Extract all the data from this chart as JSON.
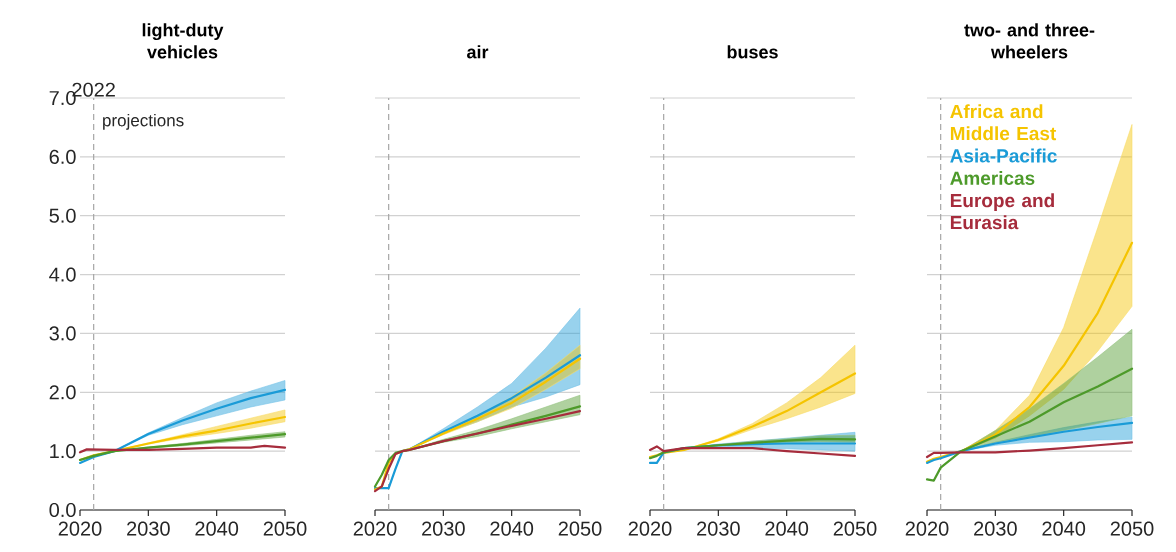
{
  "chart_data": [
    {
      "type": "line",
      "title": "light-duty vehicles",
      "xlim": [
        2020,
        2050
      ],
      "ylim": [
        0,
        7
      ],
      "xticks": [
        2020,
        2030,
        2040,
        2050
      ],
      "yticks": [
        {
          "value": 0,
          "label": "0.0"
        },
        {
          "value": 1,
          "label": "1.0"
        },
        {
          "value": 2,
          "label": "2.0"
        },
        {
          "value": 3,
          "label": "3.0"
        },
        {
          "value": 4,
          "label": "4.0"
        },
        {
          "value": 5,
          "label": "5.0"
        },
        {
          "value": 6,
          "label": "6.0"
        },
        {
          "value": 7,
          "label": "7.0"
        }
      ],
      "grid": "y",
      "ref_lines": [
        {
          "axis": "x",
          "value": 2022,
          "label": "2022",
          "color": "#a6a6a6",
          "line_style": "dashed"
        }
      ],
      "annotations": [
        "projections"
      ],
      "series": [
        {
          "color": "#f5c400",
          "x": [
            2020,
            2022,
            2025,
            2030,
            2035,
            2040,
            2045,
            2050
          ],
          "values": [
            0.85,
            0.93,
            1.0,
            1.13,
            1.25,
            1.35,
            1.47,
            1.58
          ],
          "lower": [
            0.85,
            0.93,
            1.0,
            1.12,
            1.22,
            1.3,
            1.39,
            1.5
          ],
          "upper": [
            0.85,
            0.93,
            1.0,
            1.14,
            1.28,
            1.42,
            1.56,
            1.7
          ]
        },
        {
          "color": "#1a9bd7",
          "x": [
            2020,
            2022,
            2025,
            2030,
            2035,
            2040,
            2045,
            2050
          ],
          "values": [
            0.8,
            0.9,
            1.0,
            1.29,
            1.52,
            1.72,
            1.9,
            2.04
          ],
          "lower": [
            0.8,
            0.9,
            1.0,
            1.27,
            1.45,
            1.6,
            1.75,
            1.87
          ],
          "upper": [
            0.8,
            0.9,
            1.0,
            1.31,
            1.57,
            1.82,
            2.02,
            2.2
          ]
        },
        {
          "color": "#4d9a2a",
          "x": [
            2020,
            2022,
            2025,
            2030,
            2035,
            2040,
            2045,
            2050
          ],
          "values": [
            0.85,
            0.92,
            1.0,
            1.06,
            1.11,
            1.17,
            1.23,
            1.29
          ],
          "lower": [
            0.85,
            0.92,
            1.0,
            1.05,
            1.09,
            1.14,
            1.19,
            1.24
          ],
          "upper": [
            0.85,
            0.92,
            1.0,
            1.07,
            1.13,
            1.2,
            1.27,
            1.33
          ]
        },
        {
          "color": "#a62c3c",
          "x": [
            2020,
            2021,
            2025,
            2030,
            2035,
            2040,
            2045,
            2047,
            2050
          ],
          "values": [
            0.98,
            1.03,
            1.02,
            1.02,
            1.04,
            1.06,
            1.06,
            1.09,
            1.06
          ]
        }
      ]
    },
    {
      "type": "line",
      "title": "air",
      "xlim": [
        2020,
        2050
      ],
      "ylim": [
        0,
        7
      ],
      "xticks": [
        2020,
        2030,
        2040,
        2050
      ],
      "yticks": [
        0,
        1,
        2,
        3,
        4,
        5,
        6,
        7
      ],
      "grid": "y",
      "tick_labels": "x",
      "ref_lines": [
        {
          "axis": "x",
          "value": 2022,
          "color": "#a6a6a6",
          "line_style": "dashed"
        }
      ],
      "series": [
        {
          "color": "#1a9bd7",
          "x": [
            2020,
            2021,
            2022,
            2023,
            2024,
            2025,
            2030,
            2035,
            2040,
            2045,
            2050
          ],
          "values": [
            0.37,
            0.37,
            0.37,
            0.7,
            1.0,
            1.03,
            1.33,
            1.6,
            1.9,
            2.25,
            2.63
          ],
          "lower": [
            0.37,
            0.37,
            0.37,
            0.7,
            1.0,
            1.03,
            1.3,
            1.5,
            1.75,
            1.92,
            2.13
          ],
          "upper": [
            0.37,
            0.37,
            0.37,
            0.7,
            1.0,
            1.03,
            1.38,
            1.75,
            2.15,
            2.75,
            3.43
          ]
        },
        {
          "color": "#f5c400",
          "x": [
            2020,
            2021,
            2022,
            2023,
            2024,
            2025,
            2030,
            2035,
            2040,
            2045,
            2050
          ],
          "values": [
            0.35,
            0.4,
            0.8,
            0.95,
            1.0,
            1.03,
            1.3,
            1.55,
            1.82,
            2.18,
            2.57
          ],
          "lower": [
            0.35,
            0.4,
            0.8,
            0.95,
            1.0,
            1.03,
            1.28,
            1.5,
            1.73,
            2.05,
            2.4
          ],
          "upper": [
            0.35,
            0.4,
            0.8,
            0.95,
            1.0,
            1.03,
            1.32,
            1.6,
            1.92,
            2.33,
            2.8
          ]
        },
        {
          "color": "#4d9a2a",
          "x": [
            2020,
            2021,
            2022,
            2023,
            2024,
            2025,
            2030,
            2035,
            2040,
            2045,
            2050
          ],
          "values": [
            0.4,
            0.6,
            0.85,
            0.97,
            1.0,
            1.02,
            1.17,
            1.3,
            1.45,
            1.6,
            1.76
          ],
          "lower": [
            0.4,
            0.6,
            0.85,
            0.97,
            1.0,
            1.02,
            1.15,
            1.25,
            1.38,
            1.5,
            1.62
          ],
          "upper": [
            0.4,
            0.6,
            0.85,
            0.97,
            1.0,
            1.02,
            1.2,
            1.36,
            1.55,
            1.75,
            1.95
          ]
        },
        {
          "color": "#a62c3c",
          "x": [
            2020,
            2021,
            2022,
            2023,
            2024,
            2025,
            2030,
            2035,
            2040,
            2045,
            2050
          ],
          "values": [
            0.32,
            0.4,
            0.7,
            0.95,
            1.0,
            1.02,
            1.17,
            1.3,
            1.43,
            1.55,
            1.68
          ]
        }
      ]
    },
    {
      "type": "line",
      "title": "buses",
      "xlim": [
        2020,
        2050
      ],
      "ylim": [
        0,
        7
      ],
      "xticks": [
        2020,
        2030,
        2040,
        2050
      ],
      "yticks": [
        0,
        1,
        2,
        3,
        4,
        5,
        6,
        7
      ],
      "grid": "y",
      "tick_labels": "x",
      "ref_lines": [
        {
          "axis": "x",
          "value": 2022,
          "color": "#a6a6a6",
          "line_style": "dashed"
        }
      ],
      "series": [
        {
          "color": "#f5c400",
          "x": [
            2020,
            2021,
            2022,
            2025,
            2030,
            2035,
            2040,
            2045,
            2050
          ],
          "values": [
            0.9,
            0.93,
            0.97,
            1.02,
            1.19,
            1.42,
            1.68,
            2.0,
            2.32
          ],
          "lower": [
            0.9,
            0.93,
            0.97,
            1.02,
            1.17,
            1.37,
            1.55,
            1.75,
            1.98
          ],
          "upper": [
            0.9,
            0.93,
            0.97,
            1.02,
            1.21,
            1.47,
            1.82,
            2.25,
            2.8
          ]
        },
        {
          "color": "#1a9bd7",
          "x": [
            2020,
            2021,
            2022,
            2025,
            2030,
            2035,
            2040,
            2045,
            2050
          ],
          "values": [
            0.8,
            0.8,
            0.98,
            1.05,
            1.1,
            1.12,
            1.13,
            1.13,
            1.13
          ],
          "lower": [
            0.8,
            0.8,
            0.98,
            1.05,
            1.08,
            1.05,
            1.04,
            1.02,
            1.0
          ],
          "upper": [
            0.8,
            0.8,
            0.98,
            1.05,
            1.12,
            1.17,
            1.22,
            1.27,
            1.32
          ]
        },
        {
          "color": "#4d9a2a",
          "x": [
            2020,
            2021,
            2022,
            2025,
            2030,
            2035,
            2040,
            2045,
            2050
          ],
          "values": [
            0.88,
            0.92,
            0.98,
            1.05,
            1.1,
            1.14,
            1.18,
            1.21,
            1.2
          ],
          "lower": [
            0.88,
            0.92,
            0.98,
            1.05,
            1.09,
            1.12,
            1.15,
            1.16,
            1.15
          ],
          "upper": [
            0.88,
            0.92,
            0.98,
            1.05,
            1.11,
            1.17,
            1.21,
            1.26,
            1.27
          ]
        },
        {
          "color": "#a62c3c",
          "x": [
            2020,
            2021,
            2022,
            2025,
            2030,
            2035,
            2040,
            2045,
            2050
          ],
          "values": [
            1.02,
            1.08,
            1.0,
            1.05,
            1.05,
            1.05,
            1.0,
            0.96,
            0.92
          ]
        }
      ]
    },
    {
      "type": "line",
      "title": "two- and three-wheelers",
      "xlim": [
        2020,
        2050
      ],
      "ylim": [
        0,
        7
      ],
      "xticks": [
        2020,
        2030,
        2040,
        2050
      ],
      "yticks": [
        0,
        1,
        2,
        3,
        4,
        5,
        6,
        7
      ],
      "grid": "y",
      "tick_labels": "x",
      "legend": "top left",
      "ref_lines": [
        {
          "axis": "x",
          "value": 2022,
          "color": "#a6a6a6",
          "line_style": "dashed"
        }
      ],
      "series": [
        {
          "name": "Africa and Middle East",
          "color": "#f5c400",
          "x": [
            2020,
            2021,
            2022,
            2025,
            2030,
            2035,
            2040,
            2045,
            2050
          ],
          "values": [
            0.82,
            0.87,
            0.9,
            1.0,
            1.28,
            1.75,
            2.45,
            3.35,
            4.54
          ],
          "lower": [
            0.82,
            0.87,
            0.9,
            1.0,
            1.22,
            1.6,
            2.05,
            2.7,
            3.46
          ],
          "upper": [
            0.82,
            0.87,
            0.9,
            1.0,
            1.35,
            1.95,
            3.1,
            4.8,
            6.55
          ]
        },
        {
          "name": "Asia-Pacific",
          "color": "#1a9bd7",
          "x": [
            2020,
            2021,
            2022,
            2025,
            2030,
            2035,
            2040,
            2045,
            2050
          ],
          "values": [
            0.8,
            0.85,
            0.88,
            1.0,
            1.13,
            1.23,
            1.33,
            1.41,
            1.48
          ],
          "lower": [
            0.8,
            0.85,
            0.88,
            1.0,
            1.1,
            1.15,
            1.16,
            1.19,
            1.2
          ],
          "upper": [
            0.8,
            0.85,
            0.88,
            1.0,
            1.15,
            1.28,
            1.4,
            1.5,
            1.58
          ]
        },
        {
          "name": "Americas",
          "color": "#4d9a2a",
          "x": [
            2020,
            2021,
            2022,
            2025,
            2030,
            2035,
            2040,
            2045,
            2050
          ],
          "values": [
            0.52,
            0.5,
            0.72,
            1.0,
            1.25,
            1.5,
            1.83,
            2.1,
            2.4
          ],
          "lower": [
            0.52,
            0.5,
            0.72,
            1.0,
            1.15,
            1.24,
            1.35,
            1.47,
            1.6
          ],
          "upper": [
            0.52,
            0.5,
            0.72,
            1.0,
            1.35,
            1.72,
            2.15,
            2.6,
            3.07
          ]
        },
        {
          "name": "Europe and Eurasia",
          "color": "#a62c3c",
          "x": [
            2020,
            2021,
            2022,
            2025,
            2030,
            2035,
            2040,
            2045,
            2050
          ],
          "values": [
            0.9,
            0.97,
            0.97,
            0.98,
            0.98,
            1.01,
            1.05,
            1.1,
            1.15
          ]
        }
      ]
    }
  ]
}
